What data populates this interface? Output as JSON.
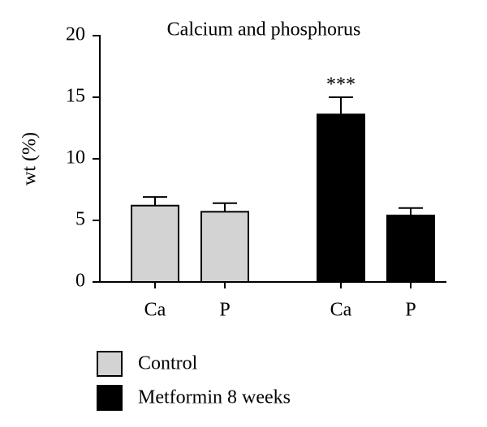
{
  "chart_data": {
    "type": "bar",
    "title": "Calcium and phosphorus",
    "ylabel": "wt (%)",
    "categories": [
      "Ca",
      "P"
    ],
    "series": [
      {
        "name": "Control",
        "color": "#d3d3d3",
        "values": [
          6.2,
          5.7
        ],
        "errors": [
          0.7,
          0.7
        ]
      },
      {
        "name": "Metformin 8 weeks",
        "color": "#000000",
        "values": [
          13.6,
          5.4
        ],
        "errors": [
          1.4,
          0.6
        ]
      }
    ],
    "annotations": [
      {
        "text": "***"
      }
    ],
    "ylim": [
      0,
      20
    ],
    "yticks": [
      0,
      5,
      10,
      15,
      20
    ],
    "grid": false
  }
}
